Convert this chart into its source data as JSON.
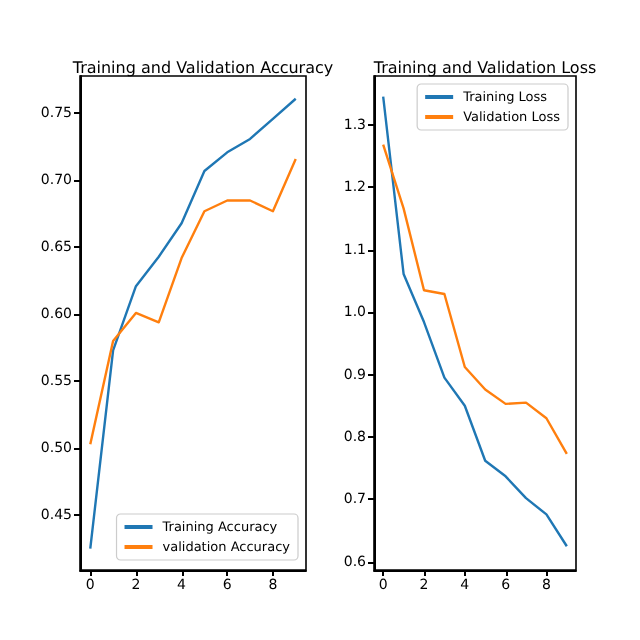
{
  "chart_data": [
    {
      "type": "line",
      "title": "Training and Validation Accuracy",
      "x": [
        0,
        1,
        2,
        3,
        4,
        5,
        6,
        7,
        8,
        9
      ],
      "xlim": [
        -0.45,
        9.45
      ],
      "xticks": [
        0,
        2,
        4,
        6,
        8
      ],
      "ylim": [
        0.409,
        0.778
      ],
      "yticks": [
        0.45,
        {
          "value": 0.5,
          "label": "0.50"
        },
        0.55,
        {
          "value": 0.6,
          "label": "0.60"
        },
        0.65,
        {
          "value": 0.7,
          "label": "0.70"
        },
        0.75
      ],
      "legend": "bottom right",
      "grid": false,
      "series": [
        {
          "name": "Training Accuracy",
          "color": "#1f77b4",
          "values": [
            0.425,
            0.573,
            0.621,
            0.643,
            0.668,
            0.707,
            0.721,
            0.731,
            0.746,
            0.761
          ]
        },
        {
          "name": "validation Accuracy",
          "color": "#ff7f0e",
          "values": [
            0.503,
            0.58,
            0.601,
            0.594,
            0.642,
            0.677,
            0.685,
            0.685,
            0.677,
            0.716
          ]
        }
      ]
    },
    {
      "type": "line",
      "title": "Training and Validation Loss",
      "x": [
        0,
        1,
        2,
        3,
        4,
        5,
        6,
        7,
        8,
        9
      ],
      "xlim": [
        -0.45,
        9.45
      ],
      "xticks": [
        0,
        2,
        4,
        6,
        8
      ],
      "ylim": [
        0.587,
        1.378
      ],
      "yticks": [
        0.6,
        0.7,
        0.8,
        0.9,
        {
          "value": 1,
          "label": "1.0"
        },
        1.1,
        1.2,
        1.3
      ],
      "legend": "top right",
      "grid": false,
      "series": [
        {
          "name": "Training Loss",
          "color": "#1f77b4",
          "values": [
            1.345,
            1.061,
            0.984,
            0.895,
            0.85,
            0.762,
            0.737,
            0.702,
            0.676,
            0.625
          ]
        },
        {
          "name": "Validation Loss",
          "color": "#ff7f0e",
          "values": [
            1.268,
            1.166,
            1.035,
            1.029,
            0.912,
            0.876,
            0.853,
            0.855,
            0.83,
            0.773
          ]
        }
      ]
    }
  ]
}
